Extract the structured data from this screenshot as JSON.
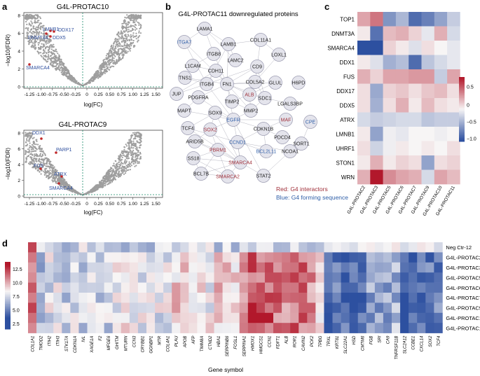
{
  "panels": {
    "a": "a",
    "b": "b",
    "c": "c",
    "d": "d"
  },
  "panel_a": {
    "top": {
      "title": "G4L-PROTAC10",
      "xlabel": "log(FC)",
      "ylabel": "−log10(FDR)",
      "xticks": [
        "-1.25",
        "-1.00",
        "-0.75",
        "-0.50",
        "-0.25",
        "0",
        "0.25",
        "0.50",
        "0.75",
        "1.00",
        "1.25",
        "1.50"
      ],
      "yticks": [
        "0",
        "2",
        "4",
        "6",
        "8"
      ],
      "labels": [
        "LMNB1",
        "DDX17",
        "DNMT3A",
        "DDX5",
        "SMARCA4"
      ]
    },
    "bottom": {
      "title": "G4L-PROTAC9",
      "xlabel": "log(FC)",
      "ylabel": "−log10(FDR)",
      "xticks": [
        "-1.25",
        "-1.00",
        "-0.75",
        "-0.50",
        "-0.25",
        "0",
        "0.25",
        "0.50",
        "0.75",
        "1.00",
        "1.25",
        "1.50"
      ],
      "yticks": [
        "0",
        "2",
        "4",
        "6",
        "8"
      ],
      "labels": [
        "DDX1",
        "PARP1",
        "FUS",
        "ATRX",
        "SMARCA4"
      ]
    }
  },
  "panel_b": {
    "title": "G4L-PROTAC11 downregulated proteins",
    "legend_red": "Red: G4 interactors",
    "legend_blue": "Blue: G4 forming sequence",
    "colors": {
      "red": "#a0303a",
      "blue": "#2f5fa8",
      "black": "#222222"
    },
    "nodes": [
      {
        "id": "LAMA1",
        "c": "black"
      },
      {
        "id": "ITGA7",
        "c": "blue"
      },
      {
        "id": "LAMB1",
        "c": "black"
      },
      {
        "id": "COL11A1",
        "c": "black"
      },
      {
        "id": "ITGB8",
        "c": "black"
      },
      {
        "id": "LAMC2",
        "c": "black"
      },
      {
        "id": "LOXL1",
        "c": "black"
      },
      {
        "id": "L1CAM",
        "c": "black"
      },
      {
        "id": "CDH11",
        "c": "black"
      },
      {
        "id": "CD9",
        "c": "black"
      },
      {
        "id": "TNS1",
        "c": "black"
      },
      {
        "id": "FN1",
        "c": "black"
      },
      {
        "id": "COL5A2",
        "c": "black"
      },
      {
        "id": "GLUL",
        "c": "black"
      },
      {
        "id": "H6PD",
        "c": "black"
      },
      {
        "id": "ITGB4",
        "c": "black"
      },
      {
        "id": "ALB",
        "c": "red"
      },
      {
        "id": "JUP",
        "c": "black"
      },
      {
        "id": "TIMP2",
        "c": "black"
      },
      {
        "id": "SDC1",
        "c": "black"
      },
      {
        "id": "LGALS3BP",
        "c": "black"
      },
      {
        "id": "PDGFRA",
        "c": "black"
      },
      {
        "id": "MMP2",
        "c": "black"
      },
      {
        "id": "MAPT",
        "c": "black"
      },
      {
        "id": "SOX9",
        "c": "black"
      },
      {
        "id": "EGFR",
        "c": "blue"
      },
      {
        "id": "MAF",
        "c": "red"
      },
      {
        "id": "CPE",
        "c": "blue"
      },
      {
        "id": "TCF4",
        "c": "black"
      },
      {
        "id": "SOX2",
        "c": "red"
      },
      {
        "id": "CDKN1B",
        "c": "black"
      },
      {
        "id": "CCND1",
        "c": "blue"
      },
      {
        "id": "PDCD4",
        "c": "black"
      },
      {
        "id": "SORT1",
        "c": "black"
      },
      {
        "id": "ARID5B",
        "c": "black"
      },
      {
        "id": "PBRM1",
        "c": "red"
      },
      {
        "id": "BCL2L11",
        "c": "blue"
      },
      {
        "id": "NCOA1",
        "c": "black"
      },
      {
        "id": "SS18",
        "c": "black"
      },
      {
        "id": "SMARCA4",
        "c": "red"
      },
      {
        "id": "STAT2",
        "c": "black"
      },
      {
        "id": "SMARCA2",
        "c": "red"
      },
      {
        "id": "BCL7B",
        "c": "black"
      }
    ]
  },
  "panel_c": {
    "rows": [
      "TOP1",
      "DNMT3A",
      "SMARCA4",
      "DDX1",
      "FUS",
      "DDX17",
      "DDX5",
      "ATRX",
      "LMNB1",
      "UHRF1",
      "STON1",
      "WRN"
    ],
    "cols": [
      "G4L-PROTAC2",
      "G4L-PROTAC3",
      "G4L-PROTAC5",
      "G4L-PROTAC6",
      "G4L-PROTAC7",
      "G4L-PROTAC9",
      "G4L-PROTAC10",
      "G4L-PROTAC11"
    ],
    "values": [
      [
        0.35,
        0.55,
        -0.7,
        -0.45,
        -1.0,
        -0.85,
        -0.6,
        -0.3
      ],
      [
        0.05,
        -0.95,
        0.25,
        0.3,
        0.15,
        -0.1,
        0.3,
        -0.2
      ],
      [
        -1.2,
        -1.2,
        0.15,
        0.05,
        -0.15,
        0.1,
        0.0,
        -0.1
      ],
      [
        0.05,
        -0.15,
        -0.5,
        -0.4,
        -1.0,
        -0.35,
        -0.2,
        -0.1
      ],
      [
        0.3,
        0.15,
        0.35,
        0.35,
        0.4,
        0.4,
        -0.3,
        0.35
      ],
      [
        0.1,
        -0.55,
        0.15,
        0.2,
        0.1,
        0.2,
        0.25,
        0.1
      ],
      [
        0.1,
        -0.5,
        0.1,
        0.3,
        0.05,
        0.25,
        0.1,
        0.05
      ],
      [
        -0.2,
        -0.3,
        -0.25,
        -0.2,
        -0.2,
        -0.35,
        -0.3,
        -0.3
      ],
      [
        0.05,
        -0.6,
        -0.05,
        -0.1,
        0.0,
        0.0,
        -0.05,
        0.0
      ],
      [
        0.1,
        -0.25,
        -0.05,
        0.05,
        0.0,
        0.05,
        0.0,
        0.1
      ],
      [
        0.05,
        0.3,
        0.05,
        0.15,
        0.1,
        -0.6,
        0.1,
        0.15
      ],
      [
        0.3,
        0.95,
        0.45,
        0.35,
        0.3,
        -0.2,
        0.35,
        0.25
      ]
    ],
    "colorbar_ticks": [
      "0.5",
      "0",
      "−0.5",
      "−1.0"
    ]
  },
  "panel_d": {
    "xlabel": "Gene symbol",
    "rows": [
      "Neg Ctr-12",
      "G4L-PROTAC2",
      "G4L-PROTAC3",
      "G4L-PROTAC5",
      "G4L-PROTAC6",
      "G4L-PROTAC7",
      "G4L-PROTAC9",
      "G4L-PROTAC10",
      "G4L-PROTAC11"
    ],
    "cols": [
      "COL1A1",
      "TMOD2",
      "ITIH2",
      "ITIH3",
      "STK17A",
      "CDKN1A",
      "IVL",
      "XAGE1A",
      "F2",
      "MFGE6",
      "GHITM",
      "MTURN",
      "CCN3",
      "CRYBB1",
      "GGNBP1",
      "MTR",
      "COL4A1",
      "PLAU",
      "APOB",
      "AFP",
      "TIMM8A",
      "CTND2",
      "HBA1",
      "SERPINB6",
      "FOSL1",
      "SERPINA1",
      "HMOX1",
      "HMGCS1",
      "CCN1",
      "FDFT1",
      "ALB",
      "ROR1",
      "CAVIN2",
      "PCK2",
      "TPBG",
      "TRXL",
      "KRT81",
      "SLC22A1",
      "HSD",
      "CMTM6",
      "FGB",
      "SRI",
      "CA9",
      "TNFRSF11B",
      "SLC2A12",
      "CCBE1",
      "CXCL14",
      "SOX2",
      "TCF4"
    ],
    "colorbar_ticks": [
      "12.5",
      "10.0",
      "7.5",
      "5.0",
      "2.5"
    ]
  }
}
